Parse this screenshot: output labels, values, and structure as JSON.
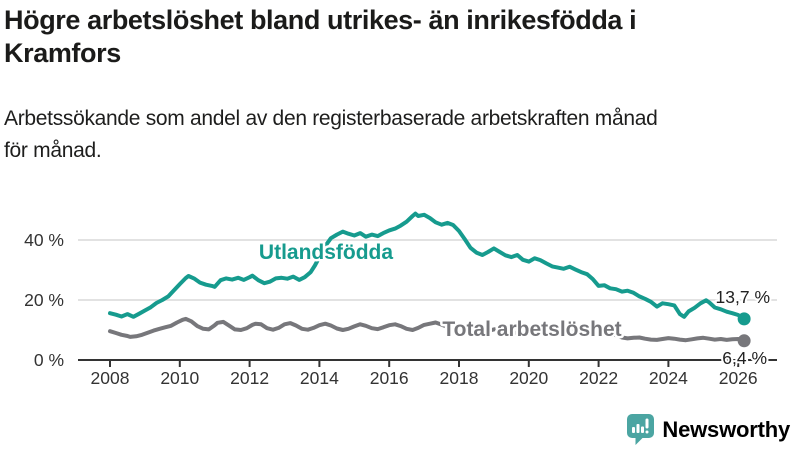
{
  "title": {
    "lines": [
      "Högre arbetslöshet bland utrikes- än inrikesfödda i",
      "Kramfors"
    ]
  },
  "subtitle": {
    "lines": [
      "Arbetssökande som andel av den registerbaserade arbetskraften månad",
      "för månad."
    ]
  },
  "colors": {
    "accent_teal": "#169b8e",
    "series_gray": "#77777b",
    "grid": "#d9d9d9",
    "axis": "#333333",
    "tick_label": "#333333",
    "annotation": "#222222",
    "text_dark": "#1b1b1a",
    "logo_teal": "#4ba5a2",
    "logo_text_teal": "#36a19e"
  },
  "chart_data": {
    "type": "line",
    "title": "Högre arbetslöshet bland utrikes- än inrikesfödda i Kramfors",
    "subtitle": "Arbetssökande som andel av den registerbaserade arbetskraften månad för månad.",
    "xlabel": "",
    "ylabel": "",
    "x_axis": {
      "ticks": [
        2008,
        2010,
        2012,
        2014,
        2016,
        2018,
        2020,
        2022,
        2024,
        2026
      ],
      "range": [
        2007.1,
        2027.1
      ]
    },
    "y_axis": {
      "ticks": [
        {
          "value": 0,
          "label": "0 %"
        },
        {
          "value": 20,
          "label": "20 %"
        },
        {
          "value": 40,
          "label": "40 %"
        }
      ],
      "range": [
        0,
        53
      ],
      "grid": true
    },
    "legend_position": "inline-labels",
    "series": [
      {
        "name": "Utlandsfödda",
        "color": "#169b8e",
        "end_label": "13,7 %",
        "end_value": 13.7,
        "points": [
          [
            2008,
            15.6
          ],
          [
            2008.17,
            15.1
          ],
          [
            2008.33,
            14.5
          ],
          [
            2008.5,
            15.3
          ],
          [
            2008.67,
            14.4
          ],
          [
            2008.83,
            15.4
          ],
          [
            2009,
            16.5
          ],
          [
            2009.17,
            17.6
          ],
          [
            2009.33,
            19
          ],
          [
            2009.5,
            20
          ],
          [
            2009.67,
            21.2
          ],
          [
            2009.83,
            23.2
          ],
          [
            2010,
            25.3
          ],
          [
            2010.17,
            27.3
          ],
          [
            2010.25,
            28
          ],
          [
            2010.42,
            27.1
          ],
          [
            2010.58,
            25.8
          ],
          [
            2010.75,
            25.1
          ],
          [
            2010.92,
            24.7
          ],
          [
            2011,
            24.4
          ],
          [
            2011.17,
            26.6
          ],
          [
            2011.33,
            27.2
          ],
          [
            2011.5,
            26.8
          ],
          [
            2011.67,
            27.4
          ],
          [
            2011.83,
            26.7
          ],
          [
            2012,
            27.6
          ],
          [
            2012.08,
            28.1
          ],
          [
            2012.25,
            26.6
          ],
          [
            2012.42,
            25.6
          ],
          [
            2012.58,
            26.1
          ],
          [
            2012.75,
            27.2
          ],
          [
            2012.92,
            27.4
          ],
          [
            2013.08,
            27.1
          ],
          [
            2013.25,
            27.8
          ],
          [
            2013.42,
            26.7
          ],
          [
            2013.58,
            27.6
          ],
          [
            2013.75,
            29.3
          ],
          [
            2013.87,
            31.5
          ],
          [
            2014,
            34.3
          ],
          [
            2014.17,
            38
          ],
          [
            2014.33,
            40.6
          ],
          [
            2014.5,
            41.8
          ],
          [
            2014.67,
            42.8
          ],
          [
            2014.83,
            42.1
          ],
          [
            2015,
            41.5
          ],
          [
            2015.17,
            42.3
          ],
          [
            2015.33,
            41.1
          ],
          [
            2015.5,
            41.8
          ],
          [
            2015.67,
            41.3
          ],
          [
            2015.83,
            42.3
          ],
          [
            2016,
            43.2
          ],
          [
            2016.17,
            43.8
          ],
          [
            2016.33,
            44.8
          ],
          [
            2016.5,
            46.1
          ],
          [
            2016.67,
            48
          ],
          [
            2016.75,
            48.8
          ],
          [
            2016.83,
            48
          ],
          [
            2017,
            48.4
          ],
          [
            2017.17,
            47.3
          ],
          [
            2017.33,
            45.9
          ],
          [
            2017.5,
            45.1
          ],
          [
            2017.67,
            45.7
          ],
          [
            2017.83,
            45
          ],
          [
            2018,
            43
          ],
          [
            2018.17,
            40.2
          ],
          [
            2018.33,
            37.4
          ],
          [
            2018.5,
            35.8
          ],
          [
            2018.67,
            35
          ],
          [
            2018.83,
            36
          ],
          [
            2019,
            37.2
          ],
          [
            2019.17,
            36
          ],
          [
            2019.33,
            34.9
          ],
          [
            2019.5,
            34.3
          ],
          [
            2019.67,
            35
          ],
          [
            2019.83,
            33.4
          ],
          [
            2020,
            32.8
          ],
          [
            2020.17,
            33.9
          ],
          [
            2020.33,
            33.3
          ],
          [
            2020.5,
            32.2
          ],
          [
            2020.67,
            31.2
          ],
          [
            2020.83,
            30.8
          ],
          [
            2021,
            30.4
          ],
          [
            2021.17,
            31.1
          ],
          [
            2021.33,
            30.2
          ],
          [
            2021.5,
            29.3
          ],
          [
            2021.67,
            28.6
          ],
          [
            2021.83,
            27
          ],
          [
            2022,
            24.7
          ],
          [
            2022.17,
            24.9
          ],
          [
            2022.33,
            23.9
          ],
          [
            2022.5,
            23.6
          ],
          [
            2022.67,
            22.8
          ],
          [
            2022.83,
            23.1
          ],
          [
            2023,
            22.4
          ],
          [
            2023.17,
            21.2
          ],
          [
            2023.33,
            20.4
          ],
          [
            2023.5,
            19.4
          ],
          [
            2023.67,
            17.8
          ],
          [
            2023.83,
            18.9
          ],
          [
            2024,
            18.6
          ],
          [
            2024.17,
            18.2
          ],
          [
            2024.33,
            15.3
          ],
          [
            2024.45,
            14.4
          ],
          [
            2024.58,
            16.2
          ],
          [
            2024.75,
            17.4
          ],
          [
            2024.92,
            18.9
          ],
          [
            2025.08,
            19.9
          ],
          [
            2025.17,
            19.2
          ],
          [
            2025.33,
            17.5
          ],
          [
            2025.5,
            16.9
          ],
          [
            2025.67,
            16.1
          ],
          [
            2025.83,
            15.6
          ],
          [
            2026,
            15
          ],
          [
            2026.17,
            13.7
          ]
        ]
      },
      {
        "name": "Total arbetslöshet",
        "color": "#77777b",
        "end_label": "6,4 %",
        "end_value": 6.4,
        "points": [
          [
            2008,
            9.6
          ],
          [
            2008.17,
            9
          ],
          [
            2008.33,
            8.4
          ],
          [
            2008.5,
            8
          ],
          [
            2008.58,
            7.7
          ],
          [
            2008.75,
            7.9
          ],
          [
            2008.92,
            8.4
          ],
          [
            2009.08,
            9.1
          ],
          [
            2009.25,
            9.8
          ],
          [
            2009.42,
            10.4
          ],
          [
            2009.58,
            10.9
          ],
          [
            2009.75,
            11.4
          ],
          [
            2009.92,
            12.5
          ],
          [
            2010.08,
            13.4
          ],
          [
            2010.17,
            13.7
          ],
          [
            2010.33,
            12.9
          ],
          [
            2010.5,
            11.3
          ],
          [
            2010.67,
            10.4
          ],
          [
            2010.83,
            10.2
          ],
          [
            2011,
            11.6
          ],
          [
            2011.08,
            12.4
          ],
          [
            2011.25,
            12.7
          ],
          [
            2011.42,
            11.4
          ],
          [
            2011.58,
            10.2
          ],
          [
            2011.75,
            10
          ],
          [
            2011.92,
            10.6
          ],
          [
            2012.08,
            11.7
          ],
          [
            2012.17,
            12.1
          ],
          [
            2012.33,
            11.9
          ],
          [
            2012.5,
            10.6
          ],
          [
            2012.67,
            10.1
          ],
          [
            2012.83,
            10.7
          ],
          [
            2013,
            11.9
          ],
          [
            2013.17,
            12.3
          ],
          [
            2013.33,
            11.5
          ],
          [
            2013.5,
            10.4
          ],
          [
            2013.67,
            10.1
          ],
          [
            2013.83,
            10.7
          ],
          [
            2014,
            11.6
          ],
          [
            2014.17,
            12.1
          ],
          [
            2014.33,
            11.5
          ],
          [
            2014.5,
            10.5
          ],
          [
            2014.67,
            10
          ],
          [
            2014.83,
            10.4
          ],
          [
            2015,
            11.2
          ],
          [
            2015.17,
            11.9
          ],
          [
            2015.33,
            11.4
          ],
          [
            2015.5,
            10.6
          ],
          [
            2015.67,
            10.3
          ],
          [
            2015.83,
            10.9
          ],
          [
            2016,
            11.6
          ],
          [
            2016.17,
            11.9
          ],
          [
            2016.33,
            11.3
          ],
          [
            2016.5,
            10.4
          ],
          [
            2016.67,
            10
          ],
          [
            2016.83,
            10.7
          ],
          [
            2017,
            11.7
          ],
          [
            2017.17,
            12.1
          ],
          [
            2017.33,
            12.5
          ],
          [
            2017.5,
            11.8
          ],
          [
            2017.67,
            11
          ],
          [
            2017.83,
            10.6
          ],
          [
            2018,
            11
          ],
          [
            2018.17,
            11.3
          ],
          [
            2018.33,
            10.6
          ],
          [
            2018.5,
            9.8
          ],
          [
            2018.67,
            9.4
          ],
          [
            2018.83,
            9.7
          ],
          [
            2019,
            10.2
          ],
          [
            2019.17,
            10.4
          ],
          [
            2019.33,
            9.8
          ],
          [
            2019.5,
            9.2
          ],
          [
            2019.67,
            9
          ],
          [
            2019.83,
            9.4
          ],
          [
            2020,
            9.8
          ],
          [
            2020.17,
            10.3
          ],
          [
            2020.33,
            10.8
          ],
          [
            2020.5,
            10.5
          ],
          [
            2020.67,
            10
          ],
          [
            2020.83,
            9.7
          ],
          [
            2021,
            10
          ],
          [
            2021.17,
            9.7
          ],
          [
            2021.33,
            9.2
          ],
          [
            2021.5,
            8.8
          ],
          [
            2021.67,
            8.6
          ],
          [
            2021.83,
            8.8
          ],
          [
            2022,
            9
          ],
          [
            2022.17,
            8.8
          ],
          [
            2022.33,
            8.5
          ],
          [
            2022.5,
            8.3
          ],
          [
            2022.67,
            7.5
          ],
          [
            2022.83,
            7.2
          ],
          [
            2023,
            7.4
          ],
          [
            2023.17,
            7.5
          ],
          [
            2023.33,
            7.1
          ],
          [
            2023.5,
            6.8
          ],
          [
            2023.67,
            6.7
          ],
          [
            2023.83,
            7
          ],
          [
            2024,
            7.3
          ],
          [
            2024.17,
            7.1
          ],
          [
            2024.33,
            6.8
          ],
          [
            2024.5,
            6.6
          ],
          [
            2024.67,
            6.9
          ],
          [
            2024.83,
            7.2
          ],
          [
            2025,
            7.4
          ],
          [
            2025.17,
            7.1
          ],
          [
            2025.33,
            6.8
          ],
          [
            2025.5,
            7
          ],
          [
            2025.67,
            6.7
          ],
          [
            2025.83,
            6.9
          ],
          [
            2026,
            7
          ],
          [
            2026.17,
            6.4
          ]
        ]
      }
    ]
  },
  "logo": {
    "text": "Newsworthy"
  }
}
